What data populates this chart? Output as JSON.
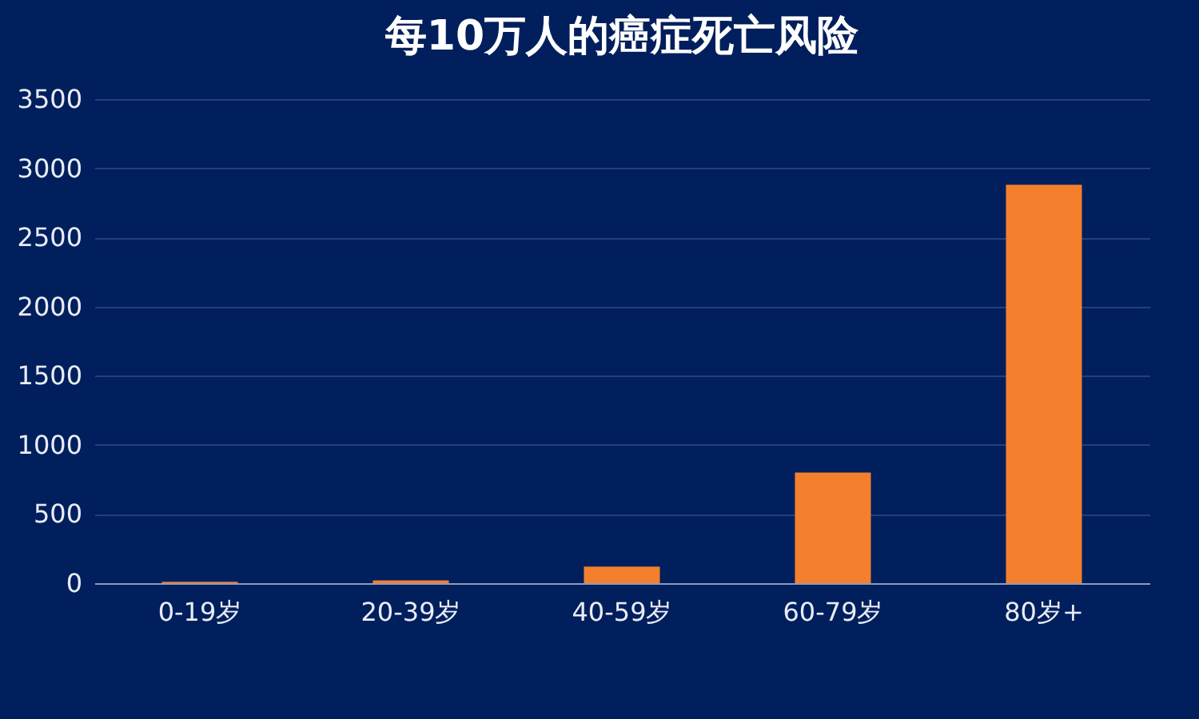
{
  "chart_data": {
    "type": "bar",
    "title": "每10万人的癌症死亡风险",
    "categories": [
      "0-19岁",
      "20-39岁",
      "40-59岁",
      "60-79岁",
      "80岁+"
    ],
    "values": [
      10,
      20,
      120,
      800,
      2880
    ],
    "color": "#f47f2c",
    "ylim": [
      0,
      3500
    ],
    "yticks": [
      0,
      500,
      1000,
      1500,
      2000,
      2500,
      3000,
      3500
    ],
    "grid": "y"
  }
}
